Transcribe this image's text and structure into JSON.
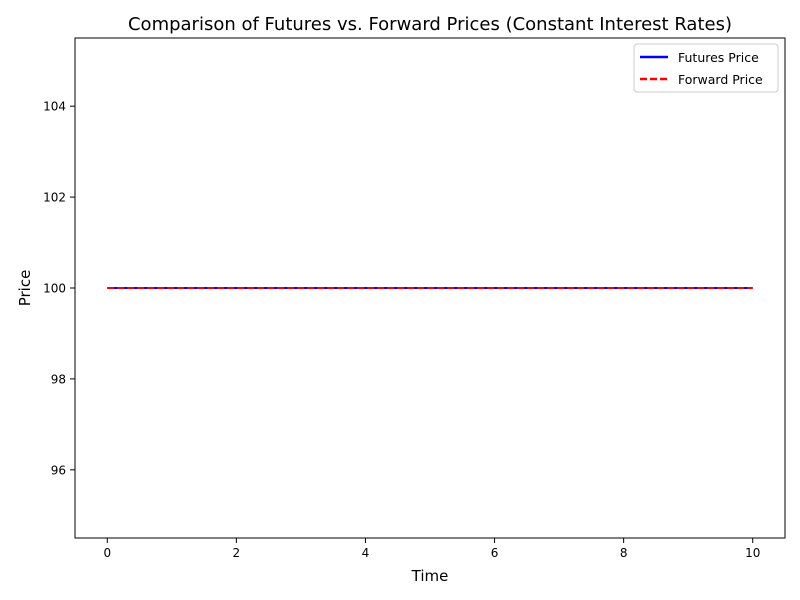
{
  "chart_data": {
    "type": "line",
    "title": "Comparison of Futures vs. Forward Prices (Constant Interest Rates)",
    "xlabel": "Time",
    "ylabel": "Price",
    "x": [
      0,
      10
    ],
    "xlim": [
      -0.5,
      10.5
    ],
    "ylim": [
      94.5,
      105.5
    ],
    "xticks": [
      "0",
      "2",
      "4",
      "6",
      "8",
      "10"
    ],
    "yticks": [
      "96",
      "98",
      "100",
      "102",
      "104"
    ],
    "grid": false,
    "legend_position": "top-right",
    "series": [
      {
        "name": "Futures Price",
        "values": [
          100,
          100
        ],
        "color": "#0000ff",
        "style": "solid"
      },
      {
        "name": "Forward Price",
        "values": [
          100,
          100
        ],
        "color": "#ff0000",
        "style": "dashed"
      }
    ]
  }
}
